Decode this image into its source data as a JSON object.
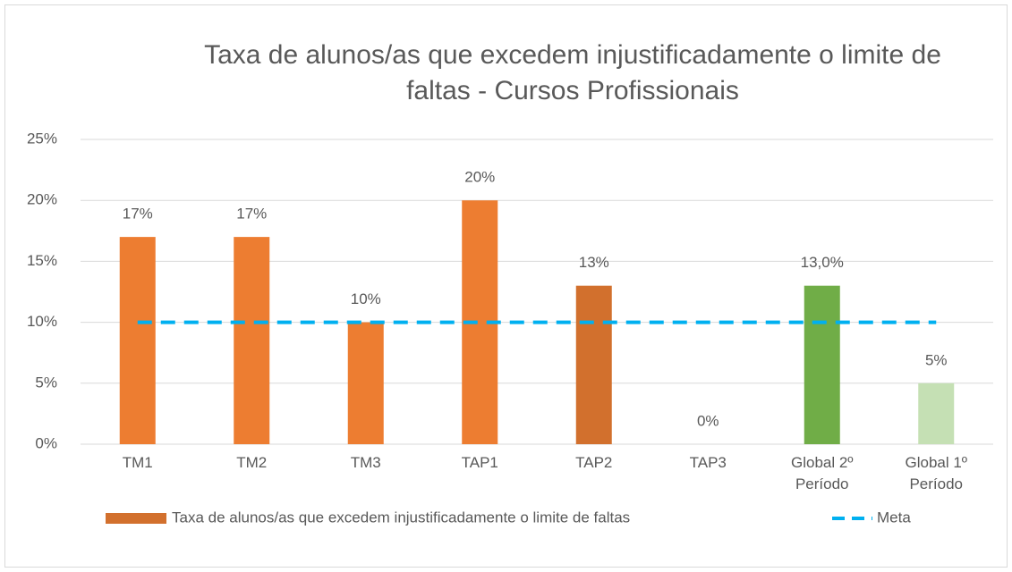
{
  "chart_data": {
    "type": "bar",
    "title": "Taxa de alunos/as que excedem injustificadamente o limite de faltas - Cursos Profissionais",
    "categories": [
      "TM1",
      "TM2",
      "TM3",
      "TAP1",
      "TAP2",
      "TAP3",
      "Global 2º Período",
      "Global 1º Período"
    ],
    "series": [
      {
        "name": "Taxa de alunos/as que excedem injustificadamente o limite de faltas",
        "type": "bar",
        "color": "#D2702D",
        "colors": [
          "#ED7D31",
          "#ED7D31",
          "#ED7D31",
          "#ED7D31",
          "#D2702D",
          "#ED7D31",
          "#70AD47",
          "#C5E0B4"
        ],
        "values": [
          17,
          17,
          10,
          20,
          13,
          0,
          13,
          5
        ],
        "value_labels": [
          "17%",
          "17%",
          "10%",
          "20%",
          "13%",
          "0%",
          "13,0%",
          "5%"
        ]
      },
      {
        "name": "Meta",
        "type": "line",
        "color": "#00B0F0",
        "dashed": true,
        "values": [
          10,
          10,
          10,
          10,
          10,
          10,
          10,
          10
        ]
      }
    ],
    "ylim": [
      0,
      25
    ],
    "yticks": [
      {
        "value": 0,
        "label": "0%"
      },
      {
        "value": 5,
        "label": "5%"
      },
      {
        "value": 10,
        "label": "10%"
      },
      {
        "value": 15,
        "label": "15%"
      },
      {
        "value": 20,
        "label": "20%"
      },
      {
        "value": 25,
        "label": "25%"
      }
    ],
    "grid": true,
    "legend": "bottom"
  }
}
